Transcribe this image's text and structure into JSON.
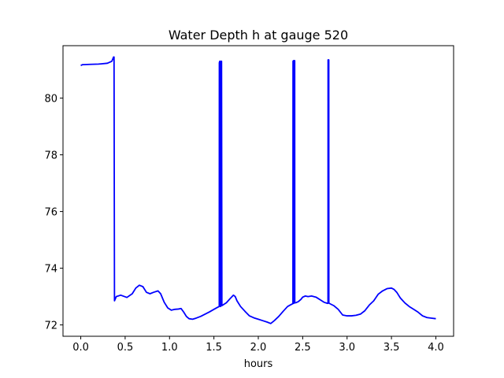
{
  "chart_data": {
    "type": "line",
    "title": "Water Depth h at gauge 520",
    "xlabel": "hours",
    "ylabel": "",
    "xlim": [
      -0.2,
      4.2
    ],
    "ylim": [
      71.6,
      81.85
    ],
    "xticks": [
      0.0,
      0.5,
      1.0,
      1.5,
      2.0,
      2.5,
      3.0,
      3.5,
      4.0
    ],
    "xtick_labels": [
      "0.0",
      "0.5",
      "1.0",
      "1.5",
      "2.0",
      "2.5",
      "3.0",
      "3.5",
      "4.0"
    ],
    "yticks": [
      72,
      74,
      76,
      78,
      80
    ],
    "ytick_labels": [
      "72",
      "74",
      "76",
      "78",
      "80"
    ],
    "grid": false,
    "series": [
      {
        "color": "#0000ff",
        "x": [
          0.0,
          0.02,
          0.1,
          0.2,
          0.3,
          0.35,
          0.37,
          0.375,
          0.38,
          0.4,
          0.45,
          0.52,
          0.58,
          0.62,
          0.66,
          0.7,
          0.74,
          0.78,
          0.82,
          0.87,
          0.9,
          0.94,
          0.98,
          1.02,
          1.06,
          1.1,
          1.13,
          1.16,
          1.19,
          1.22,
          1.26,
          1.3,
          1.35,
          1.4,
          1.45,
          1.5,
          1.54,
          1.56,
          1.561,
          1.566,
          1.571,
          1.575,
          1.576,
          1.58,
          1.581,
          1.586,
          1.59,
          1.6,
          1.64,
          1.68,
          1.72,
          1.74,
          1.76,
          1.8,
          1.85,
          1.9,
          1.95,
          2.0,
          2.05,
          2.1,
          2.14,
          2.18,
          2.23,
          2.28,
          2.33,
          2.37,
          2.39,
          2.391,
          2.396,
          2.4,
          2.401,
          2.406,
          2.41,
          2.411,
          2.416,
          2.42,
          2.45,
          2.48,
          2.5,
          2.53,
          2.56,
          2.6,
          2.65,
          2.7,
          2.74,
          2.78,
          2.785,
          2.786,
          2.79,
          2.794,
          2.795,
          2.8,
          2.85,
          2.9,
          2.95,
          3.0,
          3.05,
          3.1,
          3.15,
          3.2,
          3.25,
          3.3,
          3.35,
          3.4,
          3.45,
          3.5,
          3.53,
          3.56,
          3.6,
          3.65,
          3.7,
          3.75,
          3.8,
          3.85,
          3.9,
          3.95,
          4.0
        ],
        "y": [
          81.15,
          81.18,
          81.19,
          81.2,
          81.23,
          81.3,
          81.45,
          81.45,
          72.85,
          73.0,
          73.05,
          72.97,
          73.1,
          73.3,
          73.4,
          73.35,
          73.15,
          73.1,
          73.15,
          73.2,
          73.1,
          72.8,
          72.6,
          72.52,
          72.55,
          72.56,
          72.58,
          72.45,
          72.3,
          72.22,
          72.2,
          72.24,
          72.3,
          72.38,
          72.46,
          72.55,
          72.62,
          72.65,
          81.25,
          81.3,
          81.3,
          72.65,
          72.65,
          72.72,
          81.3,
          81.3,
          72.68,
          72.7,
          72.78,
          72.92,
          73.05,
          73.0,
          72.85,
          72.65,
          72.48,
          72.32,
          72.25,
          72.2,
          72.15,
          72.1,
          72.05,
          72.15,
          72.3,
          72.48,
          72.65,
          72.72,
          72.75,
          81.3,
          81.32,
          81.32,
          72.76,
          81.32,
          81.32,
          72.78,
          72.78,
          72.78,
          72.82,
          72.9,
          72.98,
          73.02,
          73.0,
          73.02,
          72.98,
          72.88,
          72.8,
          72.76,
          72.76,
          81.35,
          81.35,
          81.35,
          72.78,
          72.76,
          72.68,
          72.55,
          72.35,
          72.32,
          72.32,
          72.34,
          72.38,
          72.5,
          72.7,
          72.85,
          73.08,
          73.2,
          73.28,
          73.3,
          73.25,
          73.15,
          72.95,
          72.78,
          72.65,
          72.55,
          72.45,
          72.32,
          72.26,
          72.24,
          72.22
        ]
      }
    ]
  }
}
